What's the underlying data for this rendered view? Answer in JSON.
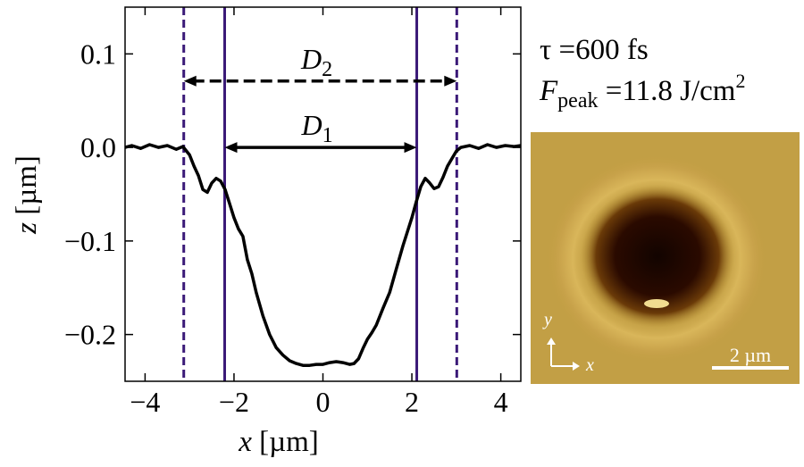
{
  "chart_data": {
    "type": "line",
    "x_label": {
      "var": "x",
      "unit": "[µm]"
    },
    "y_label": {
      "var": "z",
      "unit": "[µm]"
    },
    "x": [
      -4.45,
      -4.3,
      -4.1,
      -3.9,
      -3.7,
      -3.5,
      -3.3,
      -3.15,
      -3.0,
      -2.9,
      -2.8,
      -2.7,
      -2.6,
      -2.5,
      -2.4,
      -2.3,
      -2.2,
      -2.1,
      -2.0,
      -1.9,
      -1.8,
      -1.7,
      -1.6,
      -1.5,
      -1.35,
      -1.2,
      -1.05,
      -0.9,
      -0.75,
      -0.6,
      -0.45,
      -0.3,
      -0.15,
      0.0,
      0.15,
      0.3,
      0.45,
      0.6,
      0.7,
      0.8,
      0.9,
      1.0,
      1.1,
      1.2,
      1.35,
      1.5,
      1.65,
      1.8,
      1.9,
      2.0,
      2.1,
      2.2,
      2.3,
      2.4,
      2.5,
      2.6,
      2.7,
      2.8,
      2.9,
      3.0,
      3.1,
      3.3,
      3.5,
      3.7,
      3.9,
      4.1,
      4.3,
      4.45
    ],
    "values": [
      0.0,
      0.002,
      -0.001,
      0.003,
      0.0,
      0.002,
      -0.002,
      0.001,
      -0.008,
      -0.02,
      -0.03,
      -0.045,
      -0.048,
      -0.038,
      -0.033,
      -0.036,
      -0.045,
      -0.06,
      -0.075,
      -0.087,
      -0.095,
      -0.12,
      -0.135,
      -0.155,
      -0.18,
      -0.2,
      -0.214,
      -0.222,
      -0.228,
      -0.231,
      -0.233,
      -0.233,
      -0.232,
      -0.232,
      -0.23,
      -0.229,
      -0.23,
      -0.232,
      -0.231,
      -0.226,
      -0.215,
      -0.205,
      -0.198,
      -0.19,
      -0.172,
      -0.155,
      -0.13,
      -0.105,
      -0.09,
      -0.075,
      -0.058,
      -0.042,
      -0.033,
      -0.038,
      -0.044,
      -0.042,
      -0.032,
      -0.02,
      -0.012,
      -0.004,
      0.0,
      0.002,
      -0.001,
      0.003,
      0.0,
      0.002,
      0.001,
      0.002
    ],
    "color": "#000000",
    "xlim": [
      -4.45,
      4.45
    ],
    "ylim": [
      -0.25,
      0.15
    ],
    "xticks": [
      {
        "value": -4,
        "label": "−4"
      },
      {
        "value": -2,
        "label": "−2"
      },
      0,
      2,
      4
    ],
    "yticks": [
      {
        "value": -0.2,
        "label": "−0.2"
      },
      {
        "value": -0.1,
        "label": "−0.1"
      },
      {
        "value": 0,
        "label": "0.0"
      },
      0.1
    ],
    "vline_color": "#3b1a78",
    "vlines": [
      {
        "x": -3.13,
        "style": "dashed"
      },
      {
        "x": -2.21,
        "style": "solid"
      },
      {
        "x": 2.11,
        "style": "solid"
      },
      {
        "x": 3.01,
        "style": "dashed"
      }
    ],
    "arrows": [
      {
        "x": [
          -3.13,
          3.01
        ],
        "y": 0.071,
        "style": "dashed",
        "label": "D",
        "sub": "2"
      },
      {
        "x": [
          -2.21,
          2.11
        ],
        "y": 0.0,
        "style": "solid",
        "label": "D",
        "sub": "1"
      }
    ],
    "tau": "τ =600 fs",
    "fluence": {
      "var": "F",
      "sub": "peak",
      "text": " =11.8 J/cm",
      "sup": "2"
    },
    "image": {
      "y_axis": "y",
      "x_axis": "x",
      "scale": "2 µm"
    }
  }
}
